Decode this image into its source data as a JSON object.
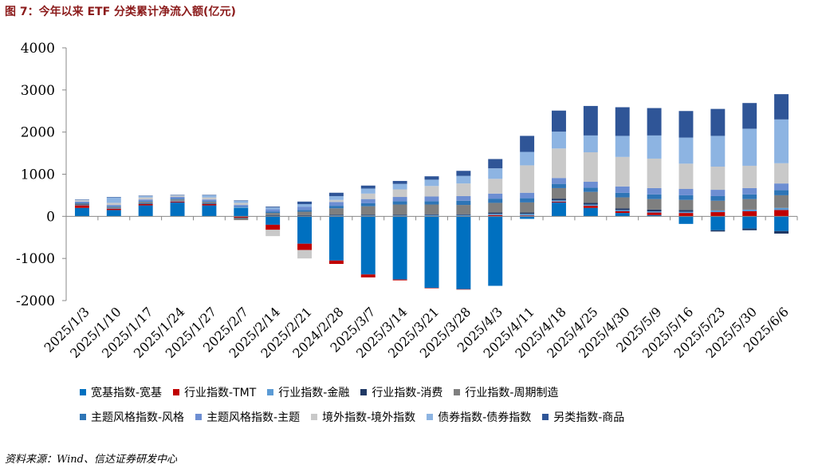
{
  "header": {
    "title": "图 7：今年以来 ETF 分类累计净流入额(亿元)"
  },
  "footer": {
    "source": "资料来源：Wind、信达证券研发中心"
  },
  "chart_data": {
    "type": "bar",
    "stacked": true,
    "title": "",
    "xlabel": "",
    "ylabel": "",
    "ylim": [
      -2000,
      4000
    ],
    "yticks": [
      -2000,
      -1000,
      0,
      1000,
      2000,
      3000,
      4000
    ],
    "grid": false,
    "legend_position": "bottom",
    "categories": [
      "2025/1/3",
      "2025/1/10",
      "2025/1/17",
      "2025/1/24",
      "2025/1/27",
      "2025/2/7",
      "2025/2/14",
      "2025/2/21",
      "2024/2/28",
      "2025/3/7",
      "2025/3/14",
      "2025/3/21",
      "2025/3/28",
      "2025/4/3",
      "2025/4/11",
      "2025/4/18",
      "2025/4/25",
      "2025/4/30",
      "2025/5/9",
      "2025/5/16",
      "2025/5/23",
      "2025/5/30",
      "2025/6/6"
    ],
    "series": [
      {
        "name": "宽基指数-宽基",
        "color": "#0070C0",
        "values": [
          200,
          150,
          260,
          330,
          260,
          200,
          -200,
          -650,
          -1050,
          -1380,
          -1500,
          -1700,
          -1730,
          -1650,
          -60,
          330,
          200,
          80,
          30,
          -180,
          -330,
          -290,
          -350
        ]
      },
      {
        "name": "行业指数-TMT",
        "color": "#C00000",
        "values": [
          60,
          30,
          30,
          20,
          30,
          -30,
          -120,
          -150,
          -80,
          -70,
          -20,
          -10,
          -5,
          30,
          20,
          20,
          50,
          40,
          60,
          80,
          100,
          120,
          150
        ]
      },
      {
        "name": "行业指数-金融",
        "color": "#5B9BD5",
        "values": [
          10,
          10,
          10,
          10,
          10,
          10,
          10,
          10,
          20,
          20,
          20,
          30,
          30,
          30,
          40,
          30,
          30,
          30,
          30,
          30,
          40,
          40,
          50
        ]
      },
      {
        "name": "行业指数-消费",
        "color": "#1F3864",
        "values": [
          10,
          10,
          10,
          10,
          10,
          -10,
          20,
          20,
          20,
          20,
          20,
          20,
          20,
          30,
          30,
          40,
          40,
          40,
          40,
          40,
          -30,
          -40,
          -60
        ]
      },
      {
        "name": "行业指数-周期制造",
        "color": "#7F7F7F",
        "values": [
          20,
          20,
          30,
          30,
          30,
          -50,
          50,
          80,
          150,
          200,
          240,
          230,
          220,
          230,
          240,
          250,
          260,
          260,
          250,
          240,
          230,
          250,
          300
        ]
      },
      {
        "name": "主题风格指数-风格",
        "color": "#2E75B6",
        "values": [
          20,
          20,
          20,
          20,
          20,
          20,
          30,
          40,
          60,
          70,
          80,
          80,
          100,
          100,
          100,
          100,
          100,
          110,
          110,
          110,
          110,
          110,
          120
        ]
      },
      {
        "name": "主题风格指数-主题",
        "color": "#6D8ED2",
        "values": [
          30,
          30,
          40,
          40,
          40,
          40,
          60,
          80,
          90,
          100,
          100,
          110,
          110,
          120,
          130,
          140,
          140,
          150,
          150,
          150,
          150,
          150,
          160
        ]
      },
      {
        "name": "境外指数-境外指数",
        "color": "#C9C9C9",
        "values": [
          30,
          50,
          50,
          30,
          50,
          50,
          -150,
          -200,
          50,
          130,
          180,
          250,
          300,
          350,
          650,
          700,
          700,
          700,
          700,
          600,
          550,
          530,
          480
        ]
      },
      {
        "name": "债券指数-债券指数",
        "color": "#8DB4E2",
        "values": [
          10,
          130,
          30,
          10,
          50,
          50,
          40,
          60,
          90,
          120,
          130,
          150,
          180,
          250,
          320,
          400,
          400,
          500,
          550,
          620,
          730,
          880,
          1040
        ]
      },
      {
        "name": "另类指数-商品",
        "color": "#2F5597",
        "values": [
          10,
          10,
          10,
          10,
          10,
          10,
          20,
          60,
          80,
          70,
          70,
          80,
          120,
          220,
          380,
          500,
          700,
          680,
          650,
          630,
          640,
          610,
          600
        ]
      }
    ]
  }
}
